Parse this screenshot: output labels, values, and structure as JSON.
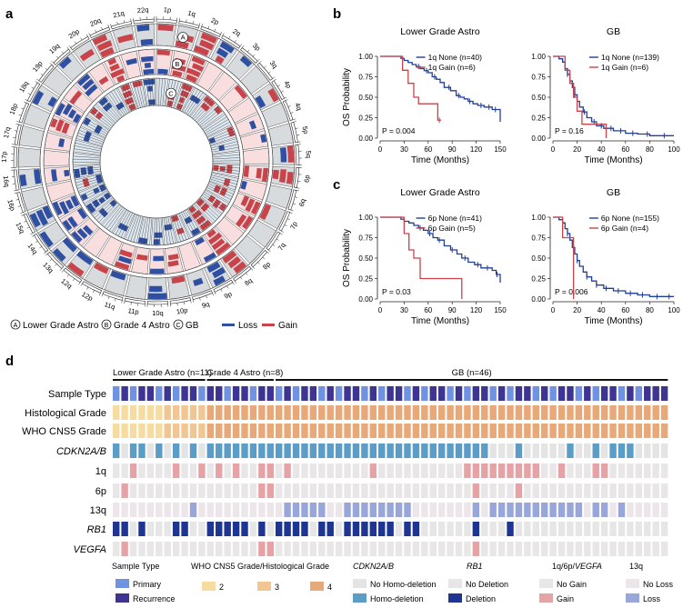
{
  "colors": {
    "loss": "#2f4fa2",
    "gain": "#c8444a",
    "ring_a_bg": "#d7dbde",
    "ring_b_bg": "#f8dede",
    "ring_c_bg": "#dde7ef",
    "curve_none": "#223f97",
    "curve_gain": "#c8444a",
    "primary": "#6f93e0",
    "recurrence": "#3d3591",
    "grade2": "#f6dca1",
    "grade3": "#f2c692",
    "grade4": "#e9a877",
    "homodel": "#5b9dc6",
    "nohomodel": "#e4e4e4",
    "nodel": "#e6e6e6",
    "del": "#1f3592",
    "nogain": "#e8e6e6",
    "gainbar": "#e5a3a5",
    "noloss": "#ece6ea",
    "lossbar": "#99a6d9"
  },
  "panel_a": {
    "letter": "a",
    "ring_labels": [
      "A",
      "B",
      "C"
    ],
    "chromosomes": [
      "1p",
      "1q",
      "2p",
      "2q",
      "3p",
      "3q",
      "4p",
      "4q",
      "5p",
      "5q",
      "6p",
      "6q",
      "7p",
      "7q",
      "8p",
      "8q",
      "9p",
      "9q",
      "10p",
      "10q",
      "11p",
      "11q",
      "12p",
      "12q",
      "13q",
      "14q",
      "15q",
      "16p",
      "16q",
      "17p",
      "17q",
      "18p",
      "18q",
      "19p",
      "19q",
      "20p",
      "20q",
      "21q",
      "22q"
    ],
    "legend": {
      "a_letter": "A",
      "a_text": "Lower Grade Astro",
      "b_letter": "B",
      "b_text": "Grade 4 Astro",
      "c_letter": "C",
      "c_text": "GB",
      "loss": "Loss",
      "gain": "Gain"
    }
  },
  "panel_b": {
    "letter": "b",
    "plots": [
      {
        "title": "Lower Grade Astro",
        "xmax": 150,
        "xticks": [
          0,
          30,
          60,
          90,
          120,
          150
        ],
        "legend": [
          "1q None (n=40)",
          "1q Gain (n=6)"
        ],
        "pvalue": "P = 0.004",
        "xlabel": "Time (Months)",
        "ylabel": "OS Probability",
        "yticks": [
          "0.00",
          "0.25",
          "0.50",
          "0.75",
          "1.00"
        ],
        "none": [
          [
            0,
            1
          ],
          [
            22,
            1
          ],
          [
            26,
            0.975
          ],
          [
            30,
            0.95
          ],
          [
            35,
            0.925
          ],
          [
            40,
            0.9
          ],
          [
            45,
            0.875
          ],
          [
            50,
            0.85
          ],
          [
            55,
            0.825
          ],
          [
            60,
            0.8
          ],
          [
            65,
            0.75
          ],
          [
            70,
            0.72
          ],
          [
            75,
            0.68
          ],
          [
            80,
            0.62
          ],
          [
            88,
            0.58
          ],
          [
            95,
            0.52
          ],
          [
            100,
            0.5
          ],
          [
            105,
            0.48
          ],
          [
            110,
            0.45
          ],
          [
            116,
            0.42
          ],
          [
            122,
            0.4
          ],
          [
            130,
            0.38
          ],
          [
            140,
            0.35
          ],
          [
            150,
            0.2
          ]
        ],
        "gain": [
          [
            0,
            1
          ],
          [
            28,
            1
          ],
          [
            28,
            0.83
          ],
          [
            35,
            0.83
          ],
          [
            35,
            0.67
          ],
          [
            42,
            0.67
          ],
          [
            42,
            0.5
          ],
          [
            48,
            0.5
          ],
          [
            48,
            0.42
          ],
          [
            72,
            0.42
          ],
          [
            72,
            0.22
          ],
          [
            76,
            0.22
          ]
        ],
        "none_censor": [
          48,
          58,
          68,
          86,
          98,
          112,
          126,
          136,
          144
        ],
        "gain_censor": [
          74
        ]
      },
      {
        "title": "GB",
        "xmax": 100,
        "xticks": [
          0,
          20,
          40,
          60,
          80,
          100
        ],
        "legend": [
          "1q None (n=139)",
          "1q Gain (n=6)"
        ],
        "pvalue": "P = 0.16",
        "xlabel": "Time (Months)",
        "ylabel": "",
        "yticks": [
          "0.00",
          "0.25",
          "0.50",
          "0.75",
          "1.00"
        ],
        "none": [
          [
            0,
            1
          ],
          [
            5,
            0.97
          ],
          [
            8,
            0.93
          ],
          [
            10,
            0.85
          ],
          [
            12,
            0.78
          ],
          [
            14,
            0.7
          ],
          [
            16,
            0.62
          ],
          [
            18,
            0.53
          ],
          [
            20,
            0.45
          ],
          [
            22,
            0.38
          ],
          [
            25,
            0.32
          ],
          [
            28,
            0.25
          ],
          [
            32,
            0.2
          ],
          [
            36,
            0.15
          ],
          [
            42,
            0.12
          ],
          [
            50,
            0.09
          ],
          [
            60,
            0.06
          ],
          [
            70,
            0.05
          ],
          [
            80,
            0.03
          ],
          [
            90,
            0.03
          ],
          [
            100,
            0.03
          ]
        ],
        "gain": [
          [
            0,
            1
          ],
          [
            10,
            1
          ],
          [
            10,
            0.83
          ],
          [
            14,
            0.83
          ],
          [
            14,
            0.67
          ],
          [
            17,
            0.67
          ],
          [
            17,
            0.5
          ],
          [
            20,
            0.5
          ],
          [
            20,
            0.33
          ],
          [
            24,
            0.33
          ],
          [
            24,
            0.17
          ],
          [
            44,
            0.17
          ],
          [
            44,
            0
          ]
        ],
        "none_censor": [
          12,
          18,
          26,
          34,
          40,
          48,
          56,
          66,
          78,
          92
        ],
        "gain_censor": []
      }
    ]
  },
  "panel_c": {
    "letter": "c",
    "plots": [
      {
        "title": "Lower Grade Astro",
        "xmax": 150,
        "xticks": [
          0,
          30,
          60,
          90,
          120,
          150
        ],
        "legend": [
          "6p None (n=41)",
          "6p Gain (n=5)"
        ],
        "pvalue": "P = 0.03",
        "xlabel": "Time (Months)",
        "ylabel": "OS Probability",
        "yticks": [
          "0.00",
          "0.25",
          "0.50",
          "0.75",
          "1.00"
        ],
        "none": [
          [
            0,
            1
          ],
          [
            22,
            1
          ],
          [
            26,
            0.975
          ],
          [
            30,
            0.95
          ],
          [
            36,
            0.93
          ],
          [
            42,
            0.9
          ],
          [
            48,
            0.87
          ],
          [
            54,
            0.84
          ],
          [
            60,
            0.8
          ],
          [
            66,
            0.75
          ],
          [
            72,
            0.72
          ],
          [
            80,
            0.65
          ],
          [
            88,
            0.6
          ],
          [
            96,
            0.55
          ],
          [
            102,
            0.5
          ],
          [
            110,
            0.45
          ],
          [
            118,
            0.42
          ],
          [
            126,
            0.38
          ],
          [
            140,
            0.35
          ],
          [
            145,
            0.3
          ],
          [
            150,
            0.2
          ]
        ],
        "gain": [
          [
            0,
            1
          ],
          [
            30,
            1
          ],
          [
            30,
            0.8
          ],
          [
            36,
            0.8
          ],
          [
            36,
            0.6
          ],
          [
            42,
            0.6
          ],
          [
            42,
            0.5
          ],
          [
            50,
            0.5
          ],
          [
            50,
            0.25
          ],
          [
            102,
            0.25
          ],
          [
            102,
            0
          ]
        ],
        "none_censor": [
          50,
          62,
          74,
          90,
          106,
          122,
          134,
          146
        ],
        "gain_censor": []
      },
      {
        "title": "GB",
        "xmax": 100,
        "xticks": [
          0,
          20,
          40,
          60,
          80,
          100
        ],
        "legend": [
          "6p None (n=155)",
          "6p Gain (n=4)"
        ],
        "pvalue": "P = 0.006",
        "xlabel": "Time (Months)",
        "ylabel": "",
        "yticks": [
          "0.00",
          "0.25",
          "0.50",
          "0.75",
          "1.00"
        ],
        "none": [
          [
            0,
            1
          ],
          [
            5,
            0.97
          ],
          [
            8,
            0.93
          ],
          [
            10,
            0.86
          ],
          [
            12,
            0.8
          ],
          [
            14,
            0.72
          ],
          [
            16,
            0.63
          ],
          [
            18,
            0.55
          ],
          [
            20,
            0.47
          ],
          [
            22,
            0.4
          ],
          [
            25,
            0.33
          ],
          [
            28,
            0.27
          ],
          [
            32,
            0.22
          ],
          [
            36,
            0.17
          ],
          [
            42,
            0.13
          ],
          [
            50,
            0.1
          ],
          [
            60,
            0.07
          ],
          [
            70,
            0.05
          ],
          [
            80,
            0.03
          ],
          [
            100,
            0.03
          ]
        ],
        "gain": [
          [
            0,
            1
          ],
          [
            8,
            1
          ],
          [
            8,
            0.75
          ],
          [
            17,
            0.75
          ],
          [
            17,
            0
          ]
        ],
        "none_censor": [
          12,
          20,
          28,
          36,
          44,
          54,
          64,
          74,
          86,
          96
        ],
        "gain_censor": []
      }
    ]
  },
  "panel_d": {
    "letter": "d",
    "groups": [
      {
        "label": "Lower Grade Astro (n=11)",
        "n": 11
      },
      {
        "label": "Grade 4 Astro (n=8)",
        "n": 8
      },
      {
        "label": "GB (n=46)",
        "n": 46
      }
    ],
    "row_labels": [
      {
        "text": "Sample Type",
        "italic": false
      },
      {
        "text": "Histological Grade",
        "italic": false
      },
      {
        "text": "WHO CNS5 Grade",
        "italic": false
      },
      {
        "text": "CDKN2A/B",
        "italic": true
      },
      {
        "text": "1q",
        "italic": false
      },
      {
        "text": "6p",
        "italic": false
      },
      {
        "text": "13q",
        "italic": false
      },
      {
        "text": "RB1",
        "italic": true
      },
      {
        "text": "VEGFA",
        "italic": true
      }
    ],
    "legend_headers": [
      {
        "text": "Sample Type",
        "italic": false
      },
      {
        "text": "WHO CNS5 Grade/Histological Grade",
        "italic": false
      },
      {
        "text": "CDKN2A/B",
        "italic": true
      },
      {
        "text": "RB1",
        "italic": true
      },
      {
        "text": "1q/6p/VEGFA",
        "italic": false,
        "italic_part": "VEGFA"
      },
      {
        "text": "13q",
        "italic": false
      }
    ],
    "legend_items": {
      "primary": "Primary",
      "recurrence": "Recurrence",
      "g2": "2",
      "g3": "3",
      "g4": "4",
      "nohomodel": "No Homo-deletion",
      "homodel": "Homo-deletion",
      "nodel": "No Deletion",
      "del": "Deletion",
      "nogain": "No Gain",
      "gain": "Gain",
      "noloss": "No Loss",
      "loss": "Loss"
    },
    "rows": {
      "sample_type_recurrence": [
        1,
        3,
        4,
        6,
        8,
        9,
        11,
        12,
        14,
        15,
        17,
        18,
        20,
        22,
        23,
        25,
        27,
        28,
        30,
        32,
        33,
        35,
        37,
        38,
        40,
        42,
        43,
        45,
        47,
        48,
        50,
        52,
        53,
        55,
        57,
        58,
        60,
        62,
        63,
        64
      ],
      "histological_grade": [
        2,
        2,
        2,
        2,
        2,
        2,
        3,
        3,
        3,
        3,
        3,
        4,
        4,
        4,
        4,
        4,
        4,
        4,
        4,
        4,
        4,
        4,
        4,
        4,
        4,
        4,
        4,
        4,
        4,
        4,
        4,
        4,
        4,
        4,
        4,
        4,
        4,
        4,
        4,
        4,
        4,
        4,
        4,
        4,
        4,
        4,
        4,
        4,
        4,
        4,
        4,
        4,
        4,
        4,
        4,
        4,
        4,
        4,
        4,
        4,
        4,
        4,
        4,
        4,
        4
      ],
      "who_grade": [
        2,
        2,
        2,
        2,
        2,
        2,
        3,
        3,
        3,
        3,
        3,
        4,
        4,
        4,
        4,
        4,
        4,
        4,
        4,
        4,
        4,
        4,
        4,
        4,
        4,
        4,
        4,
        4,
        4,
        4,
        4,
        4,
        4,
        4,
        4,
        4,
        4,
        4,
        4,
        4,
        4,
        4,
        4,
        4,
        4,
        4,
        4,
        4,
        4,
        4,
        4,
        4,
        4,
        4,
        4,
        4,
        4,
        4,
        4,
        4,
        4,
        4,
        4,
        4,
        4
      ],
      "cdkn2ab_homodel": [
        0,
        2,
        3,
        5,
        7,
        9,
        11,
        12,
        13,
        14,
        15,
        16,
        17,
        18,
        19,
        20,
        21,
        22,
        23,
        24,
        25,
        26,
        27,
        28,
        29,
        30,
        31,
        32,
        33,
        34,
        35,
        36,
        37,
        38,
        39,
        40,
        41,
        42,
        43,
        47,
        53,
        56,
        58,
        59,
        60
      ],
      "gain_1q": [
        2,
        7,
        10,
        12,
        14,
        17,
        18,
        20,
        30,
        41,
        42,
        43,
        44,
        45,
        46,
        47,
        48,
        49,
        52,
        56,
        57
      ],
      "gain_6p": [
        1,
        17,
        18,
        42,
        47
      ],
      "loss_13q": [
        9,
        20,
        21,
        22,
        23,
        24,
        27,
        28,
        29,
        30,
        31,
        32,
        33,
        34,
        42,
        44,
        45,
        46,
        47,
        48,
        49,
        50,
        51,
        52,
        53,
        54,
        56,
        57,
        59
      ],
      "del_rb1": [
        0,
        1,
        3,
        7,
        8,
        11,
        12,
        13,
        14,
        15,
        17,
        19,
        20,
        21,
        22,
        24,
        25,
        27,
        28,
        29,
        30,
        31,
        32,
        34,
        35,
        42,
        46
      ],
      "gain_vegfa": [
        1,
        17,
        18,
        42
      ]
    }
  }
}
